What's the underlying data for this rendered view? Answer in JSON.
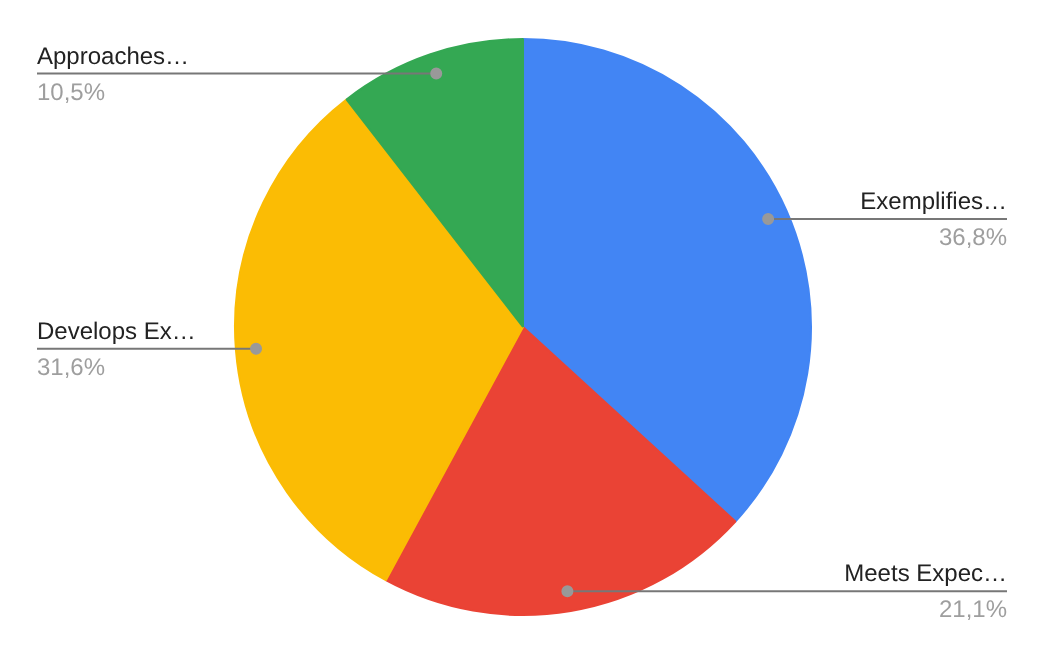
{
  "chart_data": {
    "type": "pie",
    "categories": [
      "Exemplifies…",
      "Meets Expec…",
      "Develops Ex…",
      "Approaches…"
    ],
    "values": [
      36.8,
      21.1,
      31.6,
      10.5
    ],
    "colors": [
      "#4285f4",
      "#ea4335",
      "#fbbc04",
      "#34a853"
    ],
    "value_labels": [
      "36,8%",
      "21,1%",
      "31,6%",
      "10,5%"
    ]
  }
}
